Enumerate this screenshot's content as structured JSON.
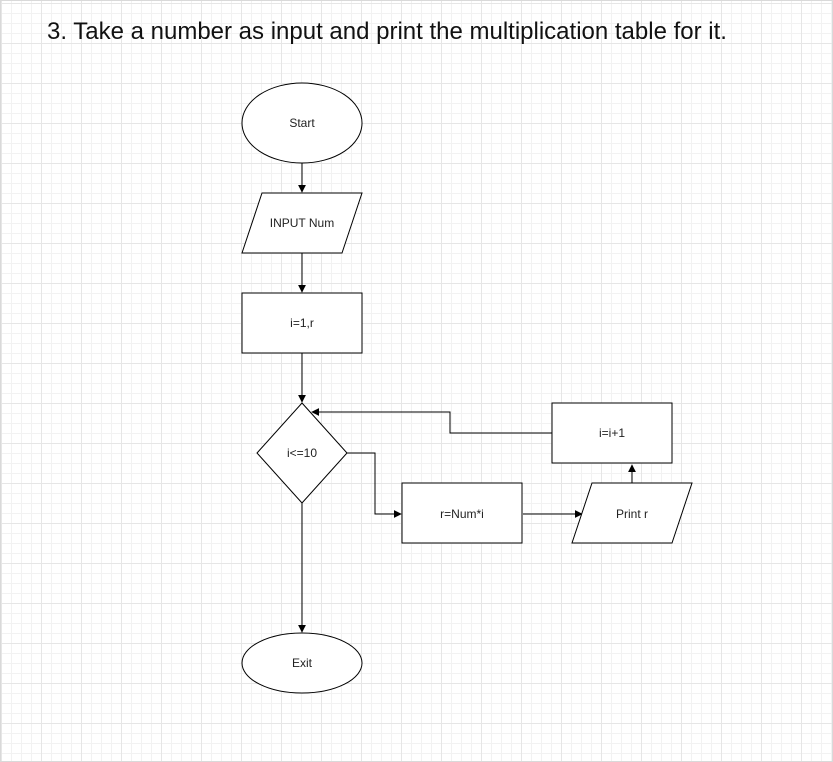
{
  "title": "3. Take a number as input and print the multiplication table for it.",
  "nodes": {
    "start": "Start",
    "input": "INPUT Num",
    "init": "i=1,r",
    "condition": "i<=10",
    "compute": "r=Num*i",
    "print": "Print r",
    "increment": "i=i+1",
    "exit": "Exit"
  }
}
